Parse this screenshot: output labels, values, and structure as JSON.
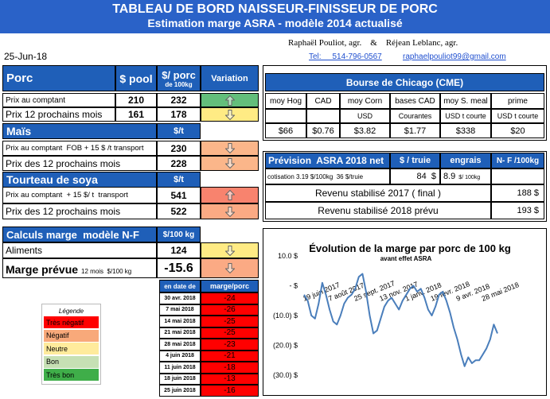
{
  "header": {
    "title": "TABLEAU DE BORD NAISSEUR-FINISSEUR DE PORC",
    "subtitle": "Estimation marge ASRA - modèle 2014 actualisé",
    "authors": "Raphaël Pouliot, agr.    &    Réjean Leblanc, agr.",
    "phone": "Tel:     514-796-0567",
    "email": "raphaelpouliot99@gmail.com",
    "date": "25-Jun-18"
  },
  "porc": {
    "title": "Porc",
    "col_pool": "$ pool",
    "col_price": "$/ porc",
    "col_price_unit": "de 100kg",
    "col_variation": "Variation",
    "rows": [
      {
        "label": "Prix au comptant",
        "pool": "210",
        "price": "232",
        "variation": "up",
        "color": "#63be7b"
      },
      {
        "label": "Prix 12 prochains mois",
        "pool": "161",
        "price": "178",
        "variation": "down",
        "color": "#ffeb84"
      }
    ]
  },
  "mais": {
    "title": "Maïs",
    "unit": "$/t",
    "rows": [
      {
        "label": "Prix au comptant  FOB + 15 $ /t transport",
        "price": "230",
        "variation": "down",
        "color": "#fbb68a"
      },
      {
        "label": "Prix des 12 prochains mois",
        "price": "228",
        "variation": "down",
        "color": "#fbb68a"
      }
    ]
  },
  "soya": {
    "title": "Tourteau de soya",
    "unit": "$/t",
    "rows": [
      {
        "label": "Prix au comptant  + 15 $/ t  transport",
        "price": "541",
        "variation": "up",
        "color": "#f8836e"
      },
      {
        "label": "Prix des 12 prochains mois",
        "price": "522",
        "variation": "down",
        "color": "#fbaa84"
      }
    ]
  },
  "calculs": {
    "title": "Calculs marge  modèle N-F",
    "unit": "$/100 kg",
    "rows": [
      {
        "label": "Aliments",
        "value": "124",
        "variation": "down",
        "color": "#ffeb84"
      }
    ],
    "marge": {
      "label": "Marge prévue",
      "note": "12 mois  $/100 kg",
      "value": "-15.6",
      "variation": "down",
      "color": "#fbaa84"
    }
  },
  "history": {
    "headers": [
      "en date de",
      "marge/porc"
    ],
    "color": "#ff0000",
    "rows": [
      [
        "30 avr. 2018",
        "-24"
      ],
      [
        "7 mai 2018",
        "-26"
      ],
      [
        "14 mai 2018",
        "-25"
      ],
      [
        "21 mai 2018",
        "-25"
      ],
      [
        "28 mai 2018",
        "-23"
      ],
      [
        "4 juin 2018",
        "-21"
      ],
      [
        "11 juin 2018",
        "-18"
      ],
      [
        "18 juin 2018",
        "-13"
      ],
      [
        "25 juin 2018",
        "-16"
      ]
    ]
  },
  "legend": {
    "title": "Légende",
    "items": [
      {
        "label": "Très négatif",
        "color": "#ff0000"
      },
      {
        "label": "Négatif",
        "color": "#f8a97a"
      },
      {
        "label": "Neutre",
        "color": "#ffeb9c"
      },
      {
        "label": "Bon",
        "color": "#c6e0b4"
      },
      {
        "label": "Très bon",
        "color": "#3fae49"
      }
    ]
  },
  "chicago": {
    "title": "Bourse de Chicago (CME)",
    "columns": [
      {
        "name": "moy Hog",
        "value": "$66"
      },
      {
        "name": "CAD",
        "value": "$0.76"
      },
      {
        "name": "moy Corn",
        "unit": "USD",
        "value": "$3.82"
      },
      {
        "name": "bases CAD",
        "unit": "Courantes",
        "value": "$1.77"
      },
      {
        "name": "moy S. meal",
        "unit": "USD t courte",
        "value": "$338"
      },
      {
        "name": "prime",
        "unit": "USD t courte",
        "value": "$20"
      }
    ]
  },
  "prevision": {
    "title": "Prévision  ASRA 2018 net",
    "col_truie": "$ / truie",
    "col_engrais": "engrais",
    "col_nf": "N- F /100kg",
    "cotisation": "cotisation 3.19 $/100kg  36 $/truie",
    "truie": "84  $",
    "engrais": "8.9",
    "engrais_unit": "$/ 100kg",
    "rows": [
      {
        "label": "Revenu stabilisé 2017 ( final )",
        "value": "188 $"
      },
      {
        "label": "Revenu stabilisé 2018 prévu",
        "value": "193 $"
      }
    ]
  },
  "chart_data": {
    "type": "line",
    "title": "Évolution de la marge par porc de 100 kg",
    "subtitle": "avant effet ASRA",
    "categories": [
      "19 juin 2017",
      null,
      null,
      null,
      null,
      null,
      null,
      "7 août 2017",
      null,
      null,
      null,
      null,
      null,
      null,
      "25 sept. 2017",
      null,
      null,
      null,
      null,
      null,
      null,
      "13 nov. 2017",
      null,
      null,
      null,
      null,
      null,
      null,
      "1 janv. 2018",
      null,
      null,
      null,
      null,
      null,
      null,
      "19 févr. 2018",
      null,
      null,
      null,
      null,
      null,
      null,
      "9 avr. 2018",
      null,
      null,
      null,
      null,
      null,
      null,
      "28 mai 2018",
      null,
      null,
      null,
      null
    ],
    "series": [
      {
        "color": "#4a7ebb",
        "values": [
          -3,
          -5,
          -10,
          -11,
          -6,
          1,
          -3,
          -8,
          -12,
          -13,
          -10,
          -6,
          -4,
          -3,
          -1,
          3,
          4,
          -2,
          -10,
          -16,
          -15,
          -11,
          -7,
          -5,
          -4,
          -6,
          -8,
          -5,
          -3,
          -1,
          0,
          -2,
          -1,
          -4,
          -8,
          -10,
          -7,
          -3,
          -2,
          -5,
          -9,
          -14,
          -18,
          -23,
          -27,
          -24,
          -26,
          -25,
          -25,
          -23,
          -21,
          -18,
          -13,
          -16
        ]
      }
    ],
    "ylim": [
      -30,
      10
    ],
    "yticks": [
      {
        "value": 10,
        "label": "10.0 $"
      },
      {
        "value": 0,
        "label": "-  $"
      },
      {
        "value": -10,
        "label": "(10.0) $"
      },
      {
        "value": -20,
        "label": "(20.0) $"
      },
      {
        "value": -30,
        "label": "(30.0) $"
      }
    ]
  }
}
